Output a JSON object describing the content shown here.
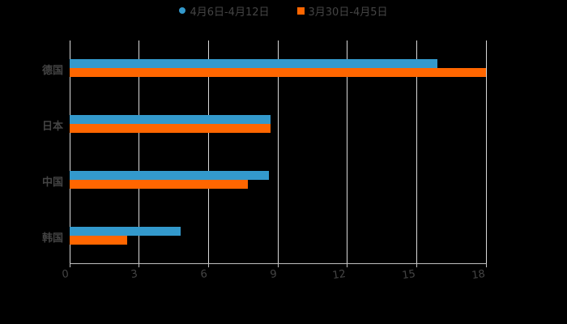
{
  "legend": [
    {
      "label": "4月6日-4月12日",
      "color": "#3399cc",
      "shape": "circle"
    },
    {
      "label": "3月30日-4月5日",
      "color": "#ff6600",
      "shape": "square"
    }
  ],
  "chart_data": {
    "type": "bar",
    "orientation": "horizontal",
    "title": "",
    "xlabel": "",
    "ylabel": "",
    "categories": [
      "德国",
      "日本",
      "中国",
      "韩国"
    ],
    "series": [
      {
        "name": "4月6日-4月12日",
        "color": "#3399cc",
        "values": [
          15.9,
          8.7,
          8.6,
          4.8
        ]
      },
      {
        "name": "3月30日-4月5日",
        "color": "#ff6600",
        "values": [
          18,
          8.7,
          7.7,
          2.5
        ]
      }
    ],
    "xlim": [
      0,
      18
    ],
    "xticks": [
      "0",
      "3",
      "6",
      "9",
      "12",
      "15",
      "18"
    ],
    "grid": true,
    "legend_position": "top"
  }
}
